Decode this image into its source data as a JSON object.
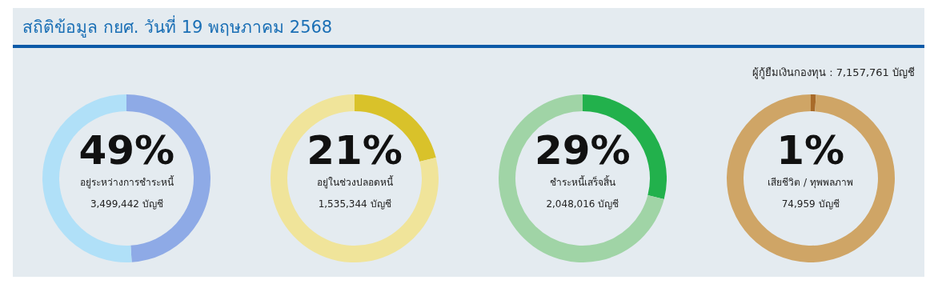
{
  "chart_data": [
    {
      "type": "other",
      "title": "สถิติข้อมูล กยศ. วันที่ 19 พฤษภาคม 2568",
      "annotations": [
        "ผู้กู้ยืมเงินกองทุน : 7,157,761 บัญชี"
      ]
    },
    {
      "type": "donut",
      "categories": [
        "อยู่ระหว่างการชำระหนี้",
        null
      ],
      "values": [
        49,
        51
      ],
      "colors": [
        "#8eaae6",
        "#b0e0f8"
      ],
      "value_labels": [
        "49%",
        null
      ],
      "annotations": [
        "3,499,442 บัญชี"
      ],
      "legend": false
    },
    {
      "type": "donut",
      "categories": [
        "อยู่ในช่วงปลอดหนี้",
        null
      ],
      "values": [
        21,
        79
      ],
      "colors": [
        "#d9c22a",
        "#f0e49a"
      ],
      "value_labels": [
        "21%",
        null
      ],
      "annotations": [
        "1,535,344 บัญชี"
      ],
      "legend": false
    },
    {
      "type": "donut",
      "categories": [
        "ชำระหนี้เสร็จสิ้น",
        null
      ],
      "values": [
        29,
        71
      ],
      "colors": [
        "#22b14c",
        "#a0d4a6"
      ],
      "value_labels": [
        "29%",
        null
      ],
      "annotations": [
        "2,048,016 บัญชี"
      ],
      "legend": false
    },
    {
      "type": "donut",
      "categories": [
        "เสียชีวิต / ทุพพลภาพ",
        null
      ],
      "values": [
        1,
        99
      ],
      "colors": [
        "#a86b2a",
        "#cfa566"
      ],
      "value_labels": [
        "1%",
        null
      ],
      "annotations": [
        "74,959 บัญชี"
      ],
      "legend": false
    }
  ]
}
